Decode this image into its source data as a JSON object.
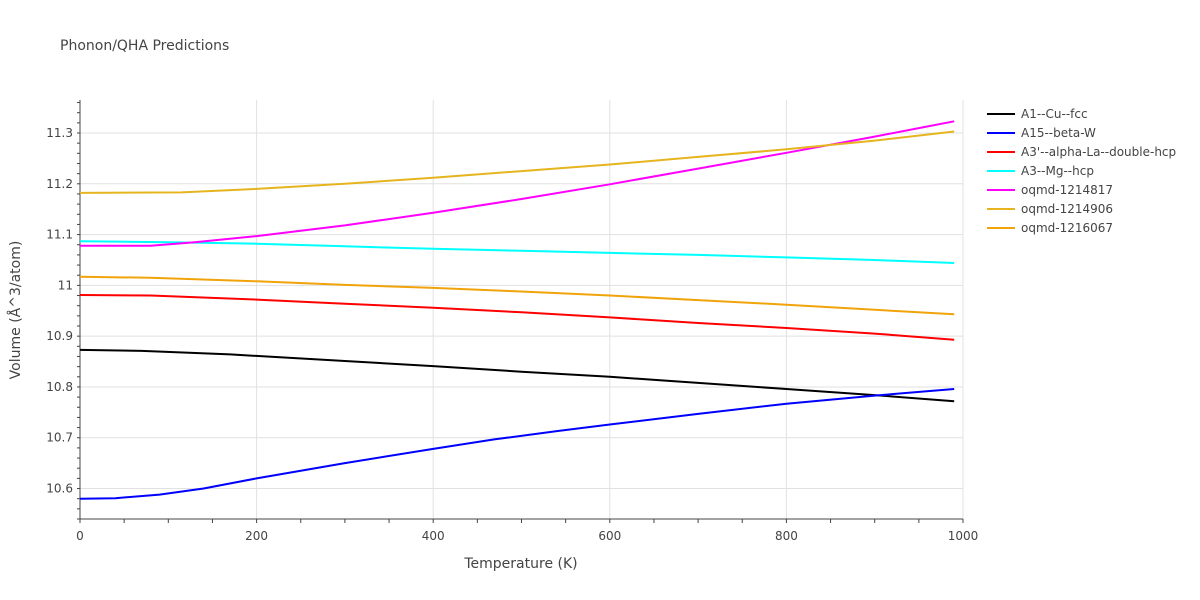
{
  "chart_data": {
    "type": "line",
    "title": "Phonon/QHA Predictions",
    "xlabel": "Temperature (K)",
    "ylabel": "Volume (Å^3/atom)",
    "xlim": [
      0,
      1000
    ],
    "ylim": [
      10.54,
      11.365
    ],
    "xticks": [
      0,
      200,
      400,
      600,
      800,
      1000
    ],
    "xtick_labels": [
      "0",
      "200",
      "400",
      "600",
      "800",
      "1000"
    ],
    "yticks": [
      10.6,
      10.7,
      10.8,
      10.9,
      11.0,
      11.1,
      11.2,
      11.3
    ],
    "ytick_labels": [
      "10.6",
      "10.7",
      "10.8",
      "10.9",
      "11",
      "11.1",
      "11.2",
      "11.3"
    ],
    "grid": true,
    "legend_position": "top-right",
    "series": [
      {
        "name": "A1--Cu--fcc",
        "color": "#000000",
        "x": [
          0,
          70,
          170,
          300,
          400,
          500,
          600,
          700,
          800,
          900,
          990
        ],
        "y": [
          10.873,
          10.871,
          10.864,
          10.851,
          10.841,
          10.83,
          10.82,
          10.808,
          10.796,
          10.784,
          10.772
        ]
      },
      {
        "name": "A15--beta-W",
        "color": "#0000ff",
        "x": [
          0,
          40,
          90,
          140,
          200,
          300,
          400,
          470,
          540,
          600,
          700,
          800,
          900,
          990
        ],
        "y": [
          10.58,
          10.581,
          10.588,
          10.6,
          10.62,
          10.65,
          10.678,
          10.697,
          10.713,
          10.726,
          10.747,
          10.767,
          10.783,
          10.796
        ]
      },
      {
        "name": "A3'--alpha-La--double-hcp",
        "color": "#ff0000",
        "x": [
          0,
          80,
          200,
          300,
          400,
          500,
          600,
          700,
          800,
          900,
          990
        ],
        "y": [
          10.981,
          10.98,
          10.972,
          10.964,
          10.956,
          10.947,
          10.937,
          10.926,
          10.916,
          10.905,
          10.893
        ]
      },
      {
        "name": "A3--Mg--hcp",
        "color": "#00ffff",
        "x": [
          0,
          100,
          200,
          300,
          400,
          500,
          600,
          700,
          800,
          900,
          990
        ],
        "y": [
          11.087,
          11.085,
          11.082,
          11.077,
          11.072,
          11.068,
          11.064,
          11.06,
          11.055,
          11.05,
          11.044
        ]
      },
      {
        "name": "oqmd-1214817",
        "color": "#ff00ff",
        "x": [
          0,
          80,
          130,
          200,
          300,
          400,
          500,
          600,
          700,
          800,
          900,
          990
        ],
        "y": [
          11.078,
          11.078,
          11.085,
          11.097,
          11.118,
          11.143,
          11.17,
          11.199,
          11.23,
          11.261,
          11.293,
          11.323
        ]
      },
      {
        "name": "oqmd-1214906",
        "color": "#e5b41f",
        "x": [
          0,
          115,
          200,
          300,
          400,
          500,
          600,
          700,
          800,
          900,
          990
        ],
        "y": [
          11.182,
          11.183,
          11.19,
          11.2,
          11.212,
          11.225,
          11.238,
          11.253,
          11.268,
          11.285,
          11.303
        ]
      },
      {
        "name": "oqmd-1216067",
        "color": "#f0a30a",
        "x": [
          0,
          80,
          200,
          300,
          400,
          500,
          600,
          700,
          800,
          900,
          990
        ],
        "y": [
          11.017,
          11.015,
          11.008,
          11.001,
          10.995,
          10.988,
          10.98,
          10.971,
          10.962,
          10.952,
          10.943
        ]
      }
    ]
  }
}
